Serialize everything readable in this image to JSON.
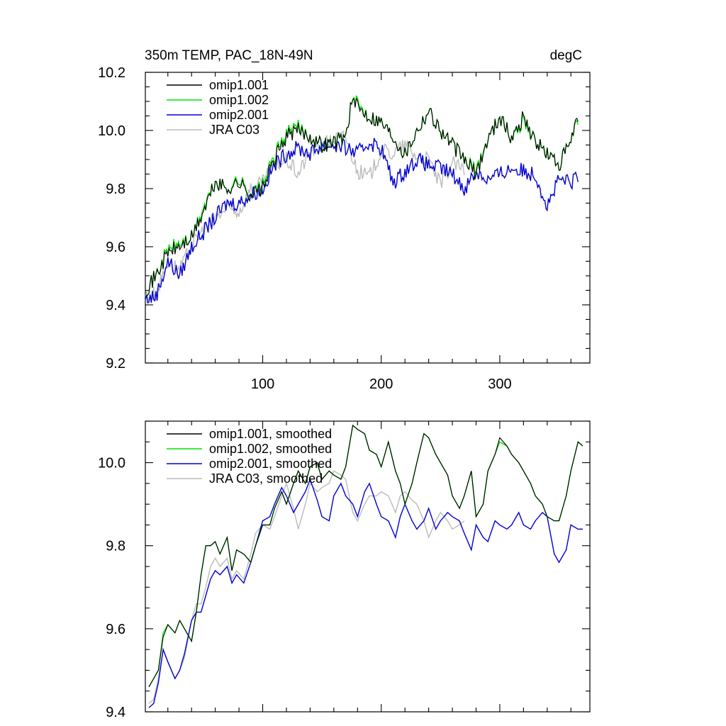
{
  "colors": {
    "omip1_001": "#000000",
    "omip1_002": "#00e000",
    "omip2_001": "#0000d0",
    "jra_c03": "#bbbbbb"
  },
  "chart_data": [
    {
      "type": "line",
      "title": "350m TEMP, PAC_18N-49N",
      "units_label": "degC",
      "xlim": [
        1,
        376
      ],
      "ylim": [
        9.2,
        10.2
      ],
      "xticks": [
        100,
        200,
        300
      ],
      "xtick_labels": [
        "100",
        "200",
        "300"
      ],
      "yticks": [
        9.2,
        9.4,
        9.6,
        9.8,
        10.0,
        10.2
      ],
      "ytick_labels": [
        "9.2",
        "9.4",
        "9.6",
        "9.8",
        "10.0",
        "10.2"
      ],
      "legend_position": "top-left",
      "series": [
        {
          "name": "omip1.001",
          "color": "#000000",
          "x_end": 366,
          "x": [
            1,
            10,
            20,
            30,
            40,
            50,
            60,
            70,
            80,
            90,
            100,
            110,
            120,
            130,
            140,
            150,
            160,
            170,
            175,
            180,
            190,
            200,
            210,
            220,
            230,
            240,
            250,
            260,
            270,
            280,
            290,
            300,
            310,
            320,
            330,
            340,
            350,
            360,
            366
          ],
          "y": [
            9.45,
            9.5,
            9.58,
            9.6,
            9.63,
            9.72,
            9.82,
            9.8,
            9.82,
            9.78,
            9.8,
            9.9,
            9.98,
            10.0,
            9.98,
            9.95,
            9.96,
            9.98,
            10.1,
            10.08,
            10.05,
            10.03,
            9.98,
            9.92,
            10.0,
            10.07,
            10.0,
            9.95,
            9.9,
            9.85,
            9.97,
            10.05,
            9.97,
            10.05,
            9.96,
            9.92,
            9.88,
            9.96,
            10.05
          ]
        },
        {
          "name": "omip1.002",
          "color": "#00e000",
          "x_end": 366,
          "x": [
            1,
            10,
            20,
            30,
            40,
            50,
            60,
            70,
            80,
            90,
            100,
            110,
            120,
            130,
            140,
            150,
            160,
            170,
            175,
            180,
            190,
            200,
            210,
            220,
            230,
            240,
            250,
            260,
            270,
            280,
            290,
            300,
            310,
            320,
            330,
            340,
            350,
            360,
            366
          ],
          "y": [
            9.45,
            9.5,
            9.59,
            9.61,
            9.63,
            9.73,
            9.82,
            9.8,
            9.83,
            9.78,
            9.81,
            9.91,
            9.99,
            10.01,
            9.98,
            9.95,
            9.96,
            9.98,
            10.1,
            10.09,
            10.05,
            10.03,
            9.98,
            9.92,
            10.0,
            10.07,
            10.0,
            9.95,
            9.9,
            9.86,
            9.97,
            10.05,
            9.97,
            10.04,
            9.96,
            9.92,
            9.88,
            9.96,
            10.04
          ]
        },
        {
          "name": "omip2.001",
          "color": "#0000d0",
          "x_end": 366,
          "x": [
            1,
            10,
            20,
            30,
            40,
            50,
            60,
            70,
            80,
            90,
            100,
            110,
            120,
            130,
            140,
            150,
            160,
            170,
            180,
            190,
            200,
            210,
            220,
            230,
            240,
            250,
            260,
            270,
            280,
            290,
            300,
            310,
            320,
            330,
            340,
            350,
            360,
            366
          ],
          "y": [
            9.42,
            9.43,
            9.55,
            9.5,
            9.6,
            9.65,
            9.7,
            9.75,
            9.75,
            9.78,
            9.8,
            9.88,
            9.92,
            9.94,
            9.92,
            9.95,
            9.95,
            9.94,
            9.92,
            9.96,
            9.94,
            9.82,
            9.86,
            9.9,
            9.88,
            9.87,
            9.85,
            9.8,
            9.86,
            9.83,
            9.85,
            9.87,
            9.86,
            9.85,
            9.74,
            9.83,
            9.82,
            9.84
          ]
        },
        {
          "name": "JRA C03",
          "color": "#bbbbbb",
          "x_end": 270,
          "x": [
            1,
            10,
            20,
            30,
            40,
            50,
            60,
            70,
            80,
            90,
            100,
            110,
            120,
            130,
            140,
            150,
            160,
            170,
            180,
            190,
            200,
            210,
            220,
            230,
            240,
            250,
            260,
            270
          ],
          "y": [
            9.43,
            9.44,
            9.55,
            9.52,
            9.6,
            9.66,
            9.7,
            9.73,
            9.72,
            9.8,
            9.82,
            9.88,
            9.9,
            9.85,
            9.93,
            9.95,
            9.97,
            9.98,
            9.86,
            9.84,
            9.93,
            9.92,
            9.95,
            9.91,
            9.9,
            9.81,
            9.89,
            9.86
          ]
        }
      ],
      "noise": 0.025
    },
    {
      "type": "line",
      "title": "",
      "xlim": [
        1,
        376
      ],
      "ylim": [
        9.4,
        10.1
      ],
      "xticks": [
        100,
        200,
        300
      ],
      "yticks": [
        9.4,
        9.6,
        9.8,
        10.0
      ],
      "ytick_labels": [
        "9.4",
        "9.6",
        "9.8",
        "10.0"
      ],
      "legend_position": "top-left",
      "series": [
        {
          "name": "omip1.001, smoothed",
          "color": "#000000",
          "x": [
            4,
            8,
            12,
            16,
            20,
            26,
            30,
            34,
            40,
            44,
            48,
            52,
            56,
            60,
            64,
            70,
            74,
            78,
            84,
            90,
            94,
            100,
            106,
            110,
            116,
            120,
            126,
            130,
            136,
            140,
            146,
            150,
            156,
            160,
            166,
            170,
            176,
            180,
            186,
            190,
            196,
            200,
            206,
            212,
            216,
            220,
            226,
            230,
            236,
            240,
            246,
            250,
            256,
            260,
            266,
            270,
            276,
            280,
            286,
            290,
            296,
            300,
            306,
            310,
            316,
            320,
            326,
            330,
            336,
            340,
            346,
            350,
            356,
            360,
            366,
            370
          ],
          "y": [
            9.46,
            9.48,
            9.5,
            9.58,
            9.61,
            9.59,
            9.62,
            9.6,
            9.57,
            9.64,
            9.73,
            9.8,
            9.8,
            9.81,
            9.78,
            9.82,
            9.74,
            9.79,
            9.78,
            9.76,
            9.8,
            9.85,
            9.85,
            9.89,
            9.93,
            9.9,
            9.95,
            9.98,
            9.95,
            9.99,
            10.0,
            9.96,
            9.98,
            9.97,
            9.96,
            9.99,
            10.09,
            10.08,
            10.07,
            10.03,
            10.02,
            9.99,
            10.05,
            9.98,
            9.95,
            9.9,
            9.95,
            10.0,
            10.07,
            10.06,
            10.02,
            10.0,
            9.97,
            9.92,
            9.89,
            9.92,
            9.98,
            9.87,
            9.9,
            9.98,
            10.02,
            10.06,
            10.04,
            10.02,
            10.0,
            9.98,
            9.95,
            9.92,
            9.9,
            9.87,
            9.86,
            9.86,
            9.92,
            9.98,
            10.05,
            10.04
          ]
        },
        {
          "name": "omip1.002, smoothed",
          "color": "#00e000",
          "x": [
            4,
            8,
            12,
            16,
            20,
            26,
            30,
            34,
            40,
            44,
            48,
            52,
            56,
            60,
            64,
            70,
            74,
            78,
            84,
            90,
            94,
            100,
            106,
            110,
            116,
            120,
            126,
            130,
            136,
            140,
            146,
            150,
            156,
            160,
            166,
            170,
            176,
            180,
            186,
            190,
            196,
            200,
            206,
            212,
            216,
            220,
            226,
            230,
            236,
            240,
            246,
            250,
            256,
            260,
            266,
            270,
            276,
            280,
            286,
            290,
            296,
            300,
            306,
            310,
            316,
            320,
            326,
            330,
            336,
            340,
            346,
            350,
            356,
            360,
            366,
            370
          ],
          "y": [
            9.46,
            9.48,
            9.5,
            9.59,
            9.61,
            9.59,
            9.62,
            9.6,
            9.57,
            9.64,
            9.73,
            9.8,
            9.8,
            9.81,
            9.78,
            9.82,
            9.74,
            9.79,
            9.78,
            9.76,
            9.8,
            9.85,
            9.85,
            9.89,
            9.93,
            9.9,
            9.95,
            9.98,
            9.95,
            9.99,
            10.0,
            9.96,
            9.98,
            9.97,
            9.96,
            9.99,
            10.09,
            10.08,
            10.07,
            10.03,
            10.02,
            9.99,
            10.05,
            9.98,
            9.95,
            9.9,
            9.95,
            10.0,
            10.07,
            10.06,
            10.02,
            10.0,
            9.97,
            9.92,
            9.89,
            9.92,
            9.98,
            9.87,
            9.9,
            9.98,
            10.02,
            10.05,
            10.04,
            10.02,
            10.0,
            9.98,
            9.95,
            9.92,
            9.9,
            9.87,
            9.86,
            9.86,
            9.92,
            9.98,
            10.05,
            10.04
          ]
        },
        {
          "name": "omip2.001, smoothed",
          "color": "#0000d0",
          "x": [
            4,
            8,
            12,
            16,
            20,
            26,
            30,
            34,
            40,
            44,
            48,
            52,
            56,
            60,
            64,
            70,
            74,
            78,
            84,
            90,
            94,
            100,
            106,
            110,
            116,
            120,
            126,
            130,
            136,
            140,
            146,
            150,
            156,
            160,
            166,
            170,
            176,
            180,
            186,
            190,
            196,
            200,
            206,
            212,
            216,
            220,
            226,
            230,
            236,
            240,
            246,
            250,
            256,
            260,
            266,
            270,
            276,
            280,
            286,
            290,
            296,
            300,
            306,
            310,
            316,
            320,
            326,
            330,
            336,
            340,
            346,
            350,
            356,
            360,
            366,
            370
          ],
          "y": [
            9.41,
            9.42,
            9.47,
            9.55,
            9.52,
            9.48,
            9.5,
            9.54,
            9.62,
            9.64,
            9.64,
            9.68,
            9.72,
            9.74,
            9.73,
            9.75,
            9.71,
            9.73,
            9.71,
            9.76,
            9.8,
            9.86,
            9.87,
            9.9,
            9.94,
            9.92,
            9.88,
            9.9,
            9.93,
            9.96,
            9.91,
            9.87,
            9.86,
            9.92,
            9.95,
            9.92,
            9.9,
            9.87,
            9.93,
            9.95,
            9.9,
            9.87,
            9.86,
            9.82,
            9.87,
            9.9,
            9.86,
            9.84,
            9.86,
            9.89,
            9.84,
            9.86,
            9.88,
            9.87,
            9.86,
            9.83,
            9.79,
            9.85,
            9.82,
            9.81,
            9.86,
            9.85,
            9.84,
            9.85,
            9.88,
            9.85,
            9.84,
            9.86,
            9.88,
            9.87,
            9.78,
            9.76,
            9.79,
            9.85,
            9.84,
            9.84
          ]
        },
        {
          "name": "JRA C03, smoothed",
          "color": "#bbbbbb",
          "x": [
            4,
            8,
            12,
            16,
            20,
            26,
            30,
            34,
            40,
            44,
            48,
            52,
            56,
            60,
            64,
            70,
            74,
            78,
            84,
            90,
            94,
            100,
            106,
            110,
            116,
            120,
            126,
            130,
            136,
            140,
            146,
            150,
            156,
            160,
            166,
            170,
            176,
            180,
            186,
            190,
            196,
            200,
            206,
            212,
            216,
            220,
            226,
            230,
            236,
            240,
            246,
            250,
            256,
            260,
            266,
            270
          ],
          "y": [
            9.42,
            9.43,
            9.48,
            9.55,
            9.52,
            9.48,
            9.5,
            9.53,
            9.62,
            9.66,
            9.66,
            9.7,
            9.75,
            9.77,
            9.75,
            9.77,
            9.72,
            9.74,
            9.72,
            9.78,
            9.83,
            9.85,
            9.84,
            9.87,
            9.92,
            9.95,
            9.89,
            9.84,
            9.9,
            9.95,
            9.93,
            9.94,
            9.95,
            9.98,
            9.97,
            9.96,
            9.88,
            9.86,
            9.9,
            9.92,
            9.92,
            9.93,
            9.92,
            9.88,
            9.92,
            9.93,
            9.91,
            9.9,
            9.86,
            9.82,
            9.86,
            9.88,
            9.86,
            9.84,
            9.85,
            9.86
          ]
        }
      ]
    }
  ]
}
